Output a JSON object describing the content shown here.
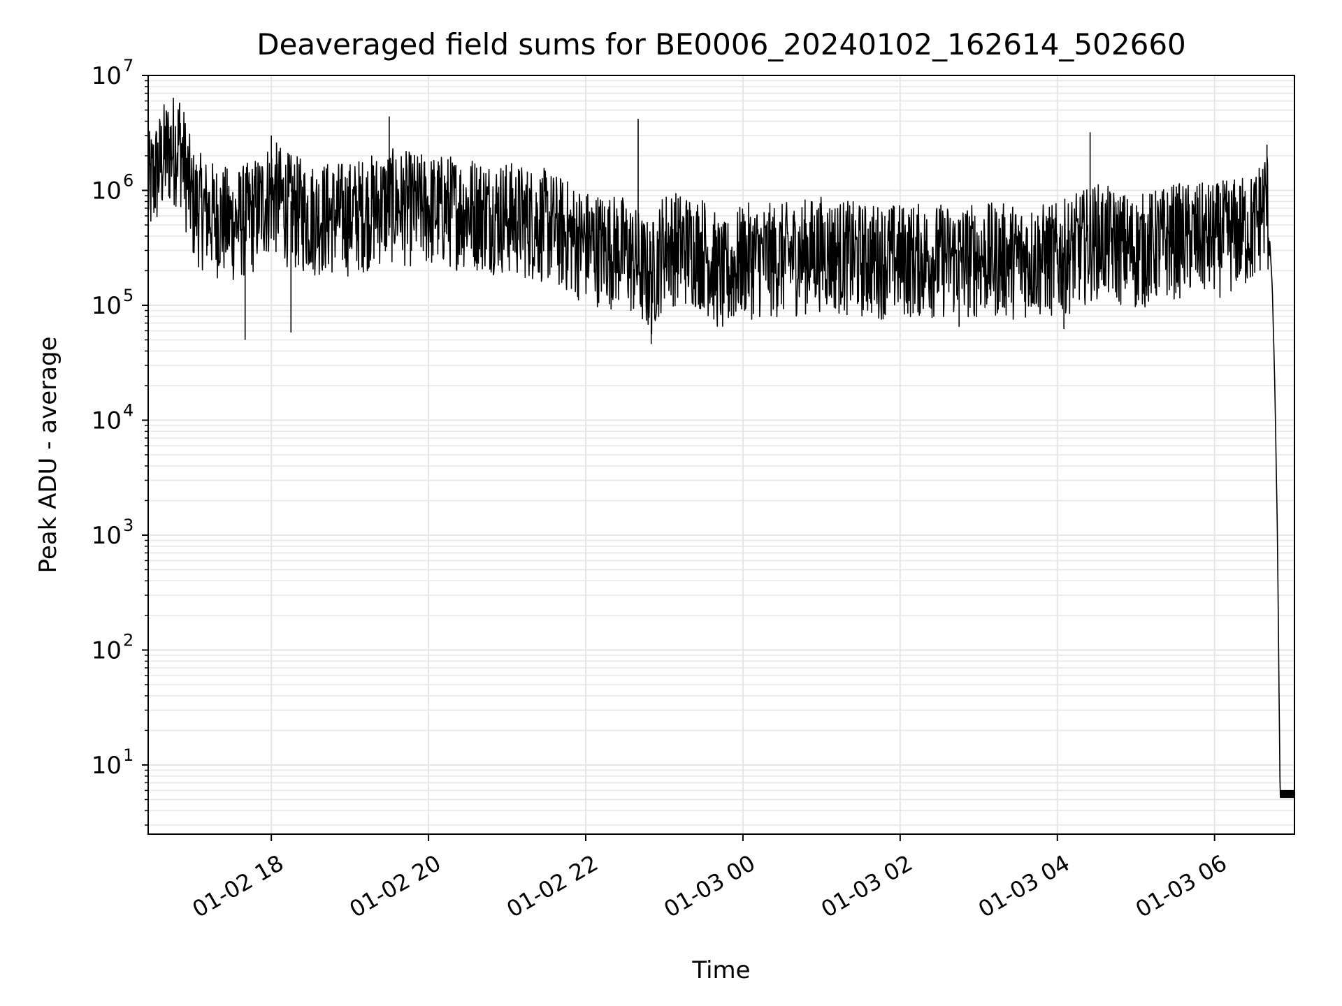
{
  "chart_data": {
    "type": "line",
    "title": "Deaveraged field sums for BE0006_20240102_162614_502660",
    "xlabel": "Time",
    "ylabel": "Peak ADU - average",
    "yscale": "log",
    "ylim": [
      2.5,
      10000000
    ],
    "xlim": [
      "2024-01-02 16:26",
      "2024-01-03 07:01"
    ],
    "grid": true,
    "colors": {
      "line": "#000000",
      "grid": "#e6e6e6",
      "axes": "#000000",
      "background": "#ffffff"
    },
    "x_ticks": [
      {
        "label": "01-02 18",
        "value": "2024-01-02 18:00"
      },
      {
        "label": "01-02 20",
        "value": "2024-01-02 20:00"
      },
      {
        "label": "01-02 22",
        "value": "2024-01-02 22:00"
      },
      {
        "label": "01-03 00",
        "value": "2024-01-03 00:00"
      },
      {
        "label": "01-03 02",
        "value": "2024-01-03 02:00"
      },
      {
        "label": "01-03 04",
        "value": "2024-01-03 04:00"
      },
      {
        "label": "01-03 06",
        "value": "2024-01-03 06:00"
      }
    ],
    "y_ticks": [
      {
        "base": "10",
        "exp": "1",
        "value": 10
      },
      {
        "base": "10",
        "exp": "2",
        "value": 100
      },
      {
        "base": "10",
        "exp": "3",
        "value": 1000
      },
      {
        "base": "10",
        "exp": "4",
        "value": 10000
      },
      {
        "base": "10",
        "exp": "5",
        "value": 100000
      },
      {
        "base": "10",
        "exp": "6",
        "value": 1000000
      },
      {
        "base": "10",
        "exp": "7",
        "value": 10000000
      }
    ],
    "series": [
      {
        "points": [
          [
            "2024-01-02 16:26",
            1200000
          ],
          [
            "2024-01-02 16:40",
            2500000
          ],
          [
            "2024-01-02 16:50",
            3000000
          ],
          [
            "2024-01-02 17:00",
            900000
          ],
          [
            "2024-01-02 17:15",
            700000
          ],
          [
            "2024-01-02 17:30",
            600000
          ],
          [
            "2024-01-02 17:45",
            700000
          ],
          [
            "2024-01-02 18:00",
            1100000
          ],
          [
            "2024-01-02 18:15",
            800000
          ],
          [
            "2024-01-02 18:30",
            700000
          ],
          [
            "2024-01-02 19:00",
            700000
          ],
          [
            "2024-01-02 19:30",
            900000
          ],
          [
            "2024-01-02 20:00",
            800000
          ],
          [
            "2024-01-02 20:30",
            800000
          ],
          [
            "2024-01-02 21:00",
            700000
          ],
          [
            "2024-01-02 21:30",
            600000
          ],
          [
            "2024-01-02 22:00",
            400000
          ],
          [
            "2024-01-02 22:30",
            350000
          ],
          [
            "2024-01-02 22:50",
            200000
          ],
          [
            "2024-01-02 23:00",
            400000
          ],
          [
            "2024-01-02 23:30",
            350000
          ],
          [
            "2024-01-02 23:45",
            200000
          ],
          [
            "2024-01-03 00:00",
            300000
          ],
          [
            "2024-01-03 00:30",
            300000
          ],
          [
            "2024-01-03 01:00",
            350000
          ],
          [
            "2024-01-03 01:30",
            300000
          ],
          [
            "2024-01-03 02:00",
            300000
          ],
          [
            "2024-01-03 02:30",
            300000
          ],
          [
            "2024-01-03 03:00",
            300000
          ],
          [
            "2024-01-03 03:30",
            300000
          ],
          [
            "2024-01-03 04:00",
            300000
          ],
          [
            "2024-01-03 04:30",
            450000
          ],
          [
            "2024-01-03 05:00",
            350000
          ],
          [
            "2024-01-03 05:30",
            450000
          ],
          [
            "2024-01-03 06:00",
            450000
          ],
          [
            "2024-01-03 06:30",
            550000
          ],
          [
            "2024-01-03 06:40",
            1000000
          ],
          [
            "2024-01-03 06:44",
            150000
          ],
          [
            "2024-01-03 06:46",
            20000
          ],
          [
            "2024-01-03 06:48",
            1000
          ],
          [
            "2024-01-03 06:50",
            6
          ],
          [
            "2024-01-03 07:01",
            6
          ]
        ],
        "spikes_high": [
          [
            "2024-01-02 16:50",
            5800000
          ],
          [
            "2024-01-02 18:00",
            3000000
          ],
          [
            "2024-01-02 19:30",
            4400000
          ],
          [
            "2024-01-02 22:40",
            4200000
          ],
          [
            "2024-01-03 04:25",
            3200000
          ],
          [
            "2024-01-03 06:40",
            2500000
          ]
        ],
        "spikes_low": [
          [
            "2024-01-02 17:40",
            50000
          ],
          [
            "2024-01-02 18:15",
            58000
          ],
          [
            "2024-01-02 22:50",
            46000
          ],
          [
            "2024-01-03 02:45",
            65000
          ],
          [
            "2024-01-03 04:05",
            62000
          ]
        ],
        "noise_low_factor": 0.25,
        "noise_high_factor": 2.6
      }
    ]
  }
}
